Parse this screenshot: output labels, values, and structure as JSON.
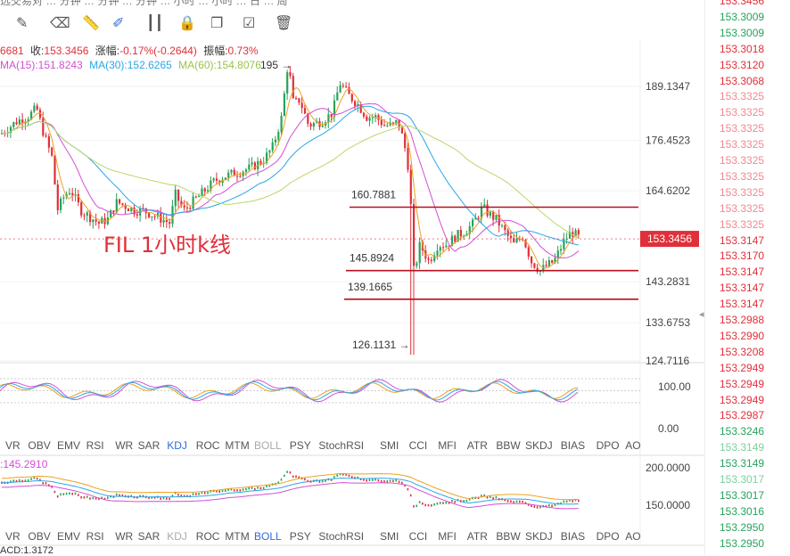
{
  "toolbar": {
    "top_text": "选交易对 … 分钟 … 分钟 … 分钟 … 小时 … 小时 … 日 … 周",
    "icons": [
      "pencil-icon",
      "eraser-icon",
      "ruler-icon",
      "brush-icon",
      "candle-icon",
      "lock-icon",
      "copy-icon",
      "edit-icon",
      "trash-icon"
    ]
  },
  "info_row": {
    "open": "6681",
    "close_label": "收:",
    "close": "153.3456",
    "change_label": "涨幅:",
    "change": "-0.17%(-0.2644)",
    "amp_label": "振幅:",
    "amp": "0.73%"
  },
  "ma_row": {
    "ma15": "MA(15):151.8243",
    "ma30": "MA(30):152.6265",
    "ma60": "MA(60):154.8076",
    "ma15_color": "#d34fd5",
    "ma30_color": "#2aa7e6",
    "ma60_color": "#b8d86a"
  },
  "price_axis": {
    "ticks": [
      "189.1347",
      "176.4523",
      "164.6202",
      "153.3456",
      "143.2831",
      "133.6753",
      "124.7116"
    ],
    "current": "153.3456"
  },
  "annotations": {
    "high_label": "195",
    "low_label": "126.1131",
    "line1": "160.7881",
    "line2": "145.8924",
    "line3": "139.1665",
    "title": "FIL 1小时k线"
  },
  "osc_axis": [
    "100.00",
    "0.00"
  ],
  "vol_axis": [
    "200.0000",
    "150.0000"
  ],
  "tabs_a": [
    "VR",
    "OBV",
    "EMV",
    "RSI",
    "WR",
    "SAR",
    "KDJ",
    "ROC",
    "MTM",
    "BOLL",
    "PSY",
    "StochRSI",
    "SMI",
    "CCI",
    "MFI",
    "ATR",
    "BBW",
    "SKDJ",
    "BIAS",
    "DPO",
    "AO"
  ],
  "tabs_a_active": "KDJ",
  "tabs_a_dim": "BOLL",
  "tabs_b_active": "BOLL",
  "tabs_b_dim": "KDJ",
  "bottom_labels": {
    "boll": ":145.2910",
    "acd": "ACD:1.3172"
  },
  "trades": {
    "prices": [
      "153.3456",
      "153.3009",
      "153.3009",
      "153.3018",
      "153.3120",
      "153.3068",
      "153.3325",
      "153.3325",
      "153.3325",
      "153.3325",
      "153.3325",
      "153.3325",
      "153.3325",
      "153.3325",
      "153.3325",
      "153.3147",
      "153.3170",
      "153.3147",
      "153.3147",
      "153.3147",
      "153.2988",
      "153.2990",
      "153.3208",
      "153.2949",
      "153.2949",
      "153.2949",
      "153.2987",
      "153.3246",
      "153.3149",
      "153.3149",
      "153.3017",
      "153.3017",
      "153.3016",
      "153.2950",
      "153.2950"
    ],
    "colors": [
      "r",
      "g",
      "g",
      "r",
      "r",
      "r",
      "r",
      "r",
      "r",
      "r",
      "r",
      "r",
      "r",
      "r",
      "r",
      "r",
      "r",
      "r",
      "r",
      "r",
      "r",
      "r",
      "r",
      "r",
      "r",
      "r",
      "r",
      "g",
      "g",
      "g",
      "g",
      "g",
      "g",
      "g",
      "g"
    ]
  },
  "chart_data": {
    "type": "candlestick",
    "title": "FIL 1小时k线",
    "ylim": [
      124.7116,
      195
    ],
    "close_path": [
      [
        0,
        178
      ],
      [
        18,
        181
      ],
      [
        30,
        182
      ],
      [
        40,
        184
      ],
      [
        48,
        178
      ],
      [
        58,
        172
      ],
      [
        63,
        160
      ],
      [
        70,
        163
      ],
      [
        78,
        165
      ],
      [
        90,
        160
      ],
      [
        110,
        157
      ],
      [
        120,
        158
      ],
      [
        130,
        162
      ],
      [
        140,
        161
      ],
      [
        150,
        160
      ],
      [
        160,
        160
      ],
      [
        170,
        159
      ],
      [
        180,
        158
      ],
      [
        190,
        157
      ],
      [
        195,
        164
      ],
      [
        205,
        160
      ],
      [
        215,
        162
      ],
      [
        225,
        164
      ],
      [
        240,
        167
      ],
      [
        250,
        168
      ],
      [
        265,
        169
      ],
      [
        280,
        170
      ],
      [
        295,
        172
      ],
      [
        305,
        175
      ],
      [
        315,
        182
      ],
      [
        322,
        195
      ],
      [
        328,
        185
      ],
      [
        335,
        186
      ],
      [
        345,
        180
      ],
      [
        360,
        181
      ],
      [
        372,
        183
      ],
      [
        380,
        190
      ],
      [
        390,
        187
      ],
      [
        400,
        185
      ],
      [
        410,
        182
      ],
      [
        420,
        182
      ],
      [
        430,
        180
      ],
      [
        440,
        180
      ],
      [
        445,
        181
      ],
      [
        452,
        176
      ],
      [
        457,
        170
      ],
      [
        460,
        160
      ],
      [
        463,
        126.1131
      ],
      [
        466,
        148
      ],
      [
        470,
        152
      ],
      [
        475,
        150
      ],
      [
        480,
        148
      ],
      [
        485,
        150
      ],
      [
        490,
        152
      ],
      [
        500,
        152
      ],
      [
        510,
        154
      ],
      [
        520,
        155
      ],
      [
        530,
        157
      ],
      [
        540,
        160.7881
      ],
      [
        548,
        159
      ],
      [
        555,
        158
      ],
      [
        565,
        155
      ],
      [
        575,
        152
      ],
      [
        585,
        154
      ],
      [
        595,
        148
      ],
      [
        605,
        145.8924
      ],
      [
        612,
        147
      ],
      [
        620,
        148
      ],
      [
        625,
        150
      ],
      [
        632,
        153
      ],
      [
        640,
        155
      ],
      [
        650,
        153.3456
      ]
    ],
    "levels": [
      160.7881,
      145.8924,
      139.1665
    ],
    "ma_series": [
      "MA(15)",
      "MA(30)",
      "MA(60)"
    ]
  }
}
